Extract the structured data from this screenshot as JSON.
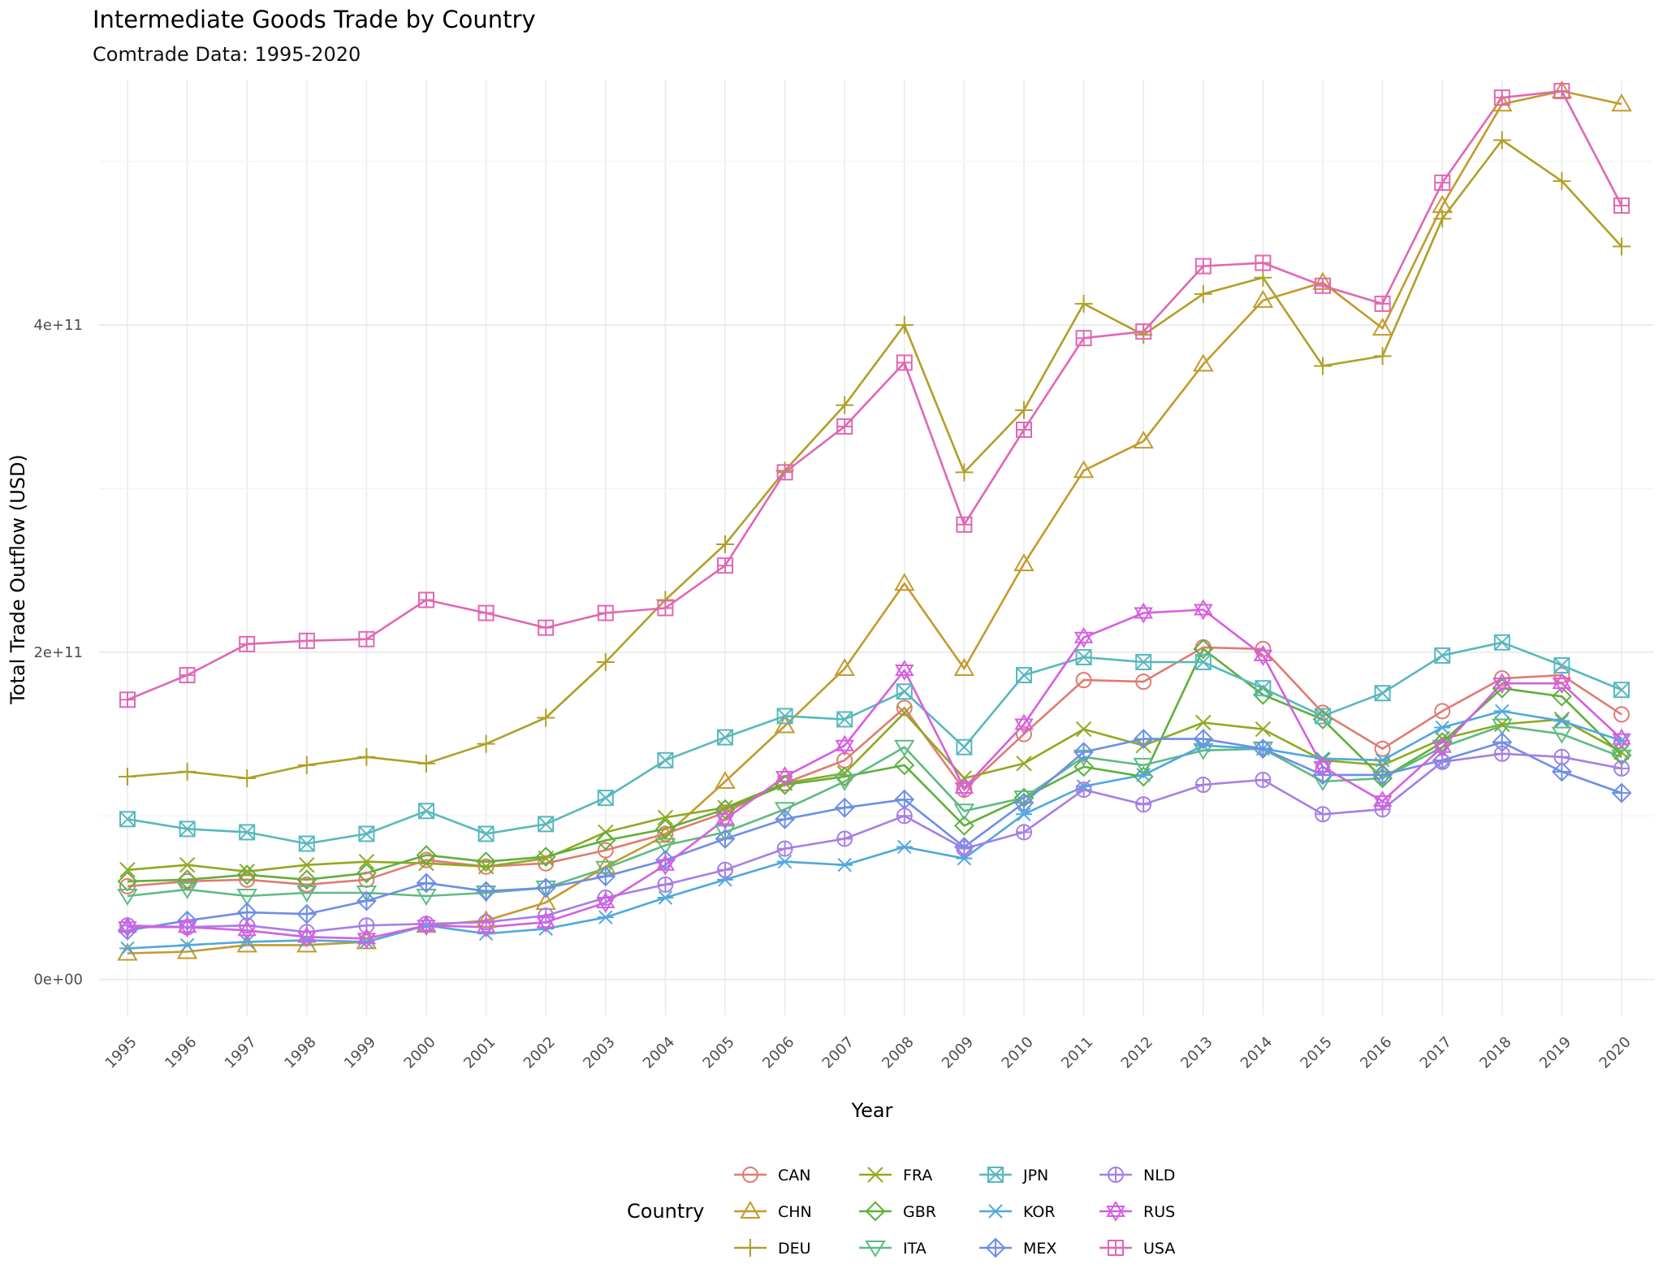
{
  "chart_data": {
    "type": "line",
    "title": "Intermediate Goods Trade by Country",
    "subtitle": "Comtrade Data: 1995-2020",
    "xlabel": "Year",
    "ylabel": "Total Trade Outflow (USD)",
    "ylim": [
      -22000000000.0,
      550000000000.0
    ],
    "y_ticks": [
      {
        "value": 0,
        "label": "0e+00"
      },
      {
        "value": 200000000000.0,
        "label": "2e+11"
      },
      {
        "value": 400000000000.0,
        "label": "4e+11"
      }
    ],
    "x": [
      1995,
      1996,
      1997,
      1998,
      1999,
      2000,
      2001,
      2002,
      2003,
      2004,
      2005,
      2006,
      2007,
      2008,
      2009,
      2010,
      2011,
      2012,
      2013,
      2014,
      2015,
      2016,
      2017,
      2018,
      2019,
      2020
    ],
    "x_tick_labels": [
      "1995",
      "1996",
      "1997",
      "1998",
      "1999",
      "2000",
      "2001",
      "2002",
      "2003",
      "2004",
      "2005",
      "2006",
      "2007",
      "2008",
      "2009",
      "2010",
      "2011",
      "2012",
      "2013",
      "2014",
      "2015",
      "2016",
      "2017",
      "2018",
      "2019",
      "2020"
    ],
    "grid": true,
    "legend": {
      "title": "Country",
      "position": "bottom"
    },
    "series": [
      {
        "name": "CAN",
        "color": "#E07B73",
        "marker": "circle",
        "values": [
          57000000000.0,
          60000000000.0,
          61000000000.0,
          58000000000.0,
          61000000000.0,
          73000000000.0,
          69000000000.0,
          71000000000.0,
          79000000000.0,
          89000000000.0,
          102000000000.0,
          120000000000.0,
          134000000000.0,
          166000000000.0,
          116000000000.0,
          150000000000.0,
          183000000000.0,
          182000000000.0,
          203000000000.0,
          202000000000.0,
          163000000000.0,
          141000000000.0,
          164000000000.0,
          184000000000.0,
          186000000000.0,
          162000000000.0
        ]
      },
      {
        "name": "CHN",
        "color": "#C49A2C",
        "marker": "triangle",
        "values": [
          16000000000.0,
          17000000000.0,
          21000000000.0,
          21000000000.0,
          23000000000.0,
          33000000000.0,
          36000000000.0,
          47000000000.0,
          69000000000.0,
          88000000000.0,
          121000000000.0,
          155000000000.0,
          190000000000.0,
          242000000000.0,
          190000000000.0,
          254000000000.0,
          311000000000.0,
          329000000000.0,
          376000000000.0,
          415000000000.0,
          426000000000.0,
          398000000000.0,
          473000000000.0,
          535000000000.0,
          543000000000.0,
          535000000000.0
        ]
      },
      {
        "name": "DEU",
        "color": "#B0A028",
        "marker": "plus",
        "values": [
          124000000000.0,
          127000000000.0,
          123000000000.0,
          131000000000.0,
          136000000000.0,
          132000000000.0,
          144000000000.0,
          160000000000.0,
          194000000000.0,
          232000000000.0,
          266000000000.0,
          311000000000.0,
          351000000000.0,
          400000000000.0,
          310000000000.0,
          348000000000.0,
          413000000000.0,
          394000000000.0,
          419000000000.0,
          429000000000.0,
          375000000000.0,
          381000000000.0,
          465000000000.0,
          513000000000.0,
          488000000000.0,
          448000000000.0
        ]
      },
      {
        "name": "FRA",
        "color": "#8FAA1E",
        "marker": "x",
        "values": [
          67000000000.0,
          70000000000.0,
          66000000000.0,
          70000000000.0,
          72000000000.0,
          71000000000.0,
          69000000000.0,
          74000000000.0,
          90000000000.0,
          99000000000.0,
          105000000000.0,
          120000000000.0,
          126000000000.0,
          163000000000.0,
          123000000000.0,
          132000000000.0,
          153000000000.0,
          143000000000.0,
          157000000000.0,
          153000000000.0,
          134000000000.0,
          131000000000.0,
          147000000000.0,
          156000000000.0,
          159000000000.0,
          139000000000.0
        ]
      },
      {
        "name": "GBR",
        "color": "#5DB03A",
        "marker": "diamond",
        "values": [
          60000000000.0,
          61000000000.0,
          64000000000.0,
          61000000000.0,
          65000000000.0,
          76000000000.0,
          72000000000.0,
          75000000000.0,
          85000000000.0,
          92000000000.0,
          104000000000.0,
          119000000000.0,
          124000000000.0,
          131000000000.0,
          94000000000.0,
          111000000000.0,
          130000000000.0,
          124000000000.0,
          202000000000.0,
          174000000000.0,
          159000000000.0,
          123000000000.0,
          145000000000.0,
          178000000000.0,
          173000000000.0,
          137000000000.0
        ]
      },
      {
        "name": "ITA",
        "color": "#5DBB82",
        "marker": "triangle-down",
        "values": [
          51000000000.0,
          55000000000.0,
          51000000000.0,
          53000000000.0,
          53000000000.0,
          51000000000.0,
          53000000000.0,
          56000000000.0,
          68000000000.0,
          82000000000.0,
          90000000000.0,
          104000000000.0,
          121000000000.0,
          142000000000.0,
          103000000000.0,
          111000000000.0,
          136000000000.0,
          131000000000.0,
          140000000000.0,
          141000000000.0,
          121000000000.0,
          123000000000.0,
          142000000000.0,
          155000000000.0,
          150000000000.0,
          136000000000.0
        ]
      },
      {
        "name": "JPN",
        "color": "#57B8BE",
        "marker": "square-x",
        "values": [
          98000000000.0,
          92000000000.0,
          90000000000.0,
          83000000000.0,
          89000000000.0,
          103000000000.0,
          89000000000.0,
          95000000000.0,
          111000000000.0,
          134000000000.0,
          148000000000.0,
          161000000000.0,
          159000000000.0,
          176000000000.0,
          142000000000.0,
          186000000000.0,
          197000000000.0,
          194000000000.0,
          194000000000.0,
          178000000000.0,
          161000000000.0,
          175000000000.0,
          198000000000.0,
          206000000000.0,
          192000000000.0,
          177000000000.0
        ]
      },
      {
        "name": "KOR",
        "color": "#4FA8DE",
        "marker": "asterisk",
        "values": [
          19000000000.0,
          21000000000.0,
          23000000000.0,
          24000000000.0,
          23000000000.0,
          33000000000.0,
          28000000000.0,
          31000000000.0,
          38000000000.0,
          50000000000.0,
          61000000000.0,
          72000000000.0,
          70000000000.0,
          81000000000.0,
          74000000000.0,
          101000000000.0,
          118000000000.0,
          125000000000.0,
          143000000000.0,
          141000000000.0,
          135000000000.0,
          134000000000.0,
          154000000000.0,
          164000000000.0,
          158000000000.0,
          146000000000.0
        ]
      },
      {
        "name": "MEX",
        "color": "#6E8EE8",
        "marker": "diamond-plus",
        "values": [
          30000000000.0,
          36000000000.0,
          41000000000.0,
          40000000000.0,
          48000000000.0,
          59000000000.0,
          54000000000.0,
          56000000000.0,
          63000000000.0,
          73000000000.0,
          86000000000.0,
          98000000000.0,
          105000000000.0,
          110000000000.0,
          81000000000.0,
          108000000000.0,
          139000000000.0,
          147000000000.0,
          147000000000.0,
          141000000000.0,
          125000000000.0,
          125000000000.0,
          134000000000.0,
          145000000000.0,
          127000000000.0,
          114000000000.0
        ]
      },
      {
        "name": "NLD",
        "color": "#A77EE6",
        "marker": "circle-plus",
        "values": [
          33000000000.0,
          32000000000.0,
          33000000000.0,
          29000000000.0,
          33000000000.0,
          34000000000.0,
          35000000000.0,
          39000000000.0,
          50000000000.0,
          58000000000.0,
          67000000000.0,
          80000000000.0,
          86000000000.0,
          100000000000.0,
          80000000000.0,
          90000000000.0,
          116000000000.0,
          107000000000.0,
          119000000000.0,
          122000000000.0,
          101000000000.0,
          104000000000.0,
          133000000000.0,
          138000000000.0,
          136000000000.0,
          129000000000.0
        ]
      },
      {
        "name": "RUS",
        "color": "#D65FE0",
        "marker": "star",
        "values": [
          32000000000.0,
          32000000000.0,
          30000000000.0,
          26000000000.0,
          25000000000.0,
          33000000000.0,
          32000000000.0,
          35000000000.0,
          47000000000.0,
          70000000000.0,
          98000000000.0,
          124000000000.0,
          143000000000.0,
          189000000000.0,
          117000000000.0,
          156000000000.0,
          209000000000.0,
          224000000000.0,
          226000000000.0,
          198000000000.0,
          130000000000.0,
          109000000000.0,
          142000000000.0,
          181000000000.0,
          181000000000.0,
          147000000000.0
        ]
      },
      {
        "name": "USA",
        "color": "#E067B5",
        "marker": "square-plus",
        "values": [
          171000000000.0,
          186000000000.0,
          205000000000.0,
          207000000000.0,
          208000000000.0,
          232000000000.0,
          224000000000.0,
          215000000000.0,
          224000000000.0,
          227000000000.0,
          253000000000.0,
          310000000000.0,
          338000000000.0,
          377000000000.0,
          278000000000.0,
          336000000000.0,
          392000000000.0,
          396000000000.0,
          436000000000.0,
          438000000000.0,
          424000000000.0,
          413000000000.0,
          487000000000.0,
          539000000000.0,
          543000000000.0,
          473000000000.0
        ]
      }
    ]
  }
}
